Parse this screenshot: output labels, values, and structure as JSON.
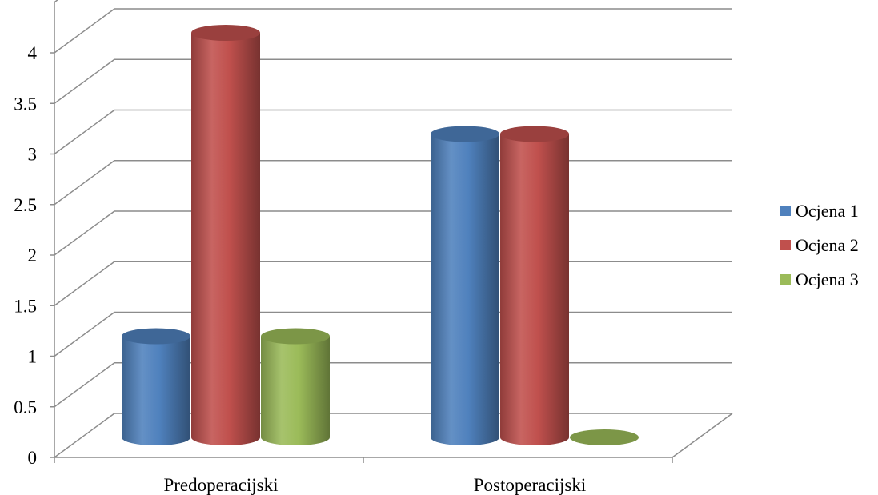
{
  "chart_data": {
    "type": "bar",
    "title": "",
    "xlabel": "",
    "ylabel": "",
    "categories": [
      "Predoperacijski",
      "Postoperacijski"
    ],
    "series": [
      {
        "name": "Ocjena 1",
        "values": [
          1,
          3
        ],
        "color": "#4F81BD"
      },
      {
        "name": "Ocjena 2",
        "values": [
          4,
          3
        ],
        "color": "#C0504D"
      },
      {
        "name": "Ocjena 3",
        "values": [
          1,
          0
        ],
        "color": "#9BBB59"
      }
    ],
    "ylim": [
      0,
      4
    ],
    "yticks": [
      "0",
      "0.5",
      "1",
      "1.5",
      "2",
      "2.5",
      "3",
      "3.5",
      "4"
    ],
    "grid": true,
    "legend": "right",
    "style": "3d-cylinder"
  }
}
